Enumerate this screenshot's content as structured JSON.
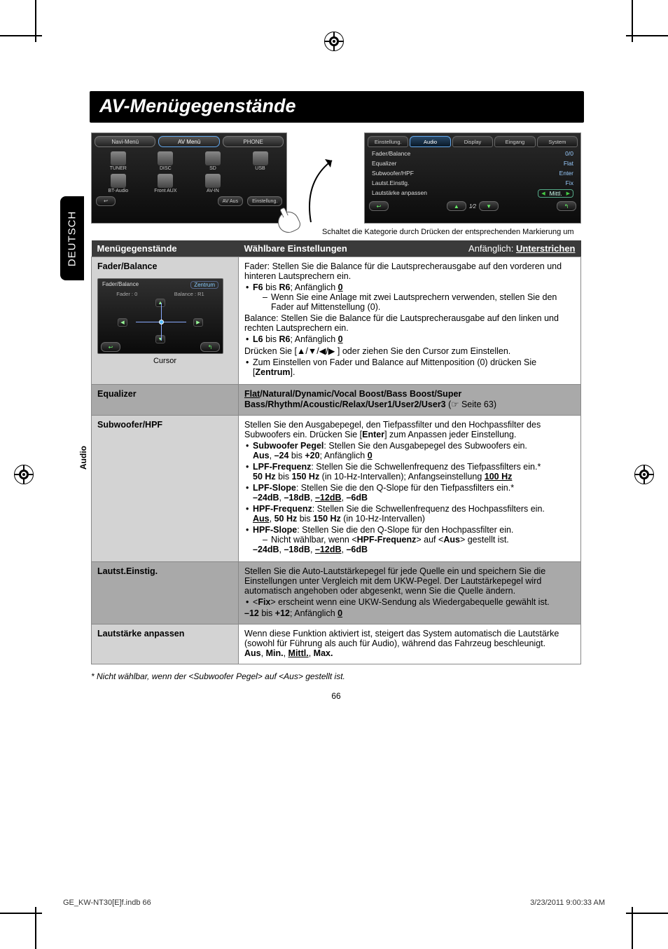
{
  "page": {
    "title": "AV-Menügegenstände",
    "language_tab": "DEUTSCH",
    "side_label": "Audio",
    "page_number": "66",
    "footnote": "*  Nicht wählbar, wenn der <Subwoofer Pegel> auf <Aus> gestellt ist.",
    "footer_left": "GE_KW-NT30[E]f.indb   66",
    "footer_right": "3/23/2011   9:00:33 AM"
  },
  "screenshot_left": {
    "tabs": [
      "Navi-Menü",
      "AV Menü",
      "PHONE"
    ],
    "icons": [
      "TUNER",
      "DISC",
      "SD",
      "USB",
      "BT-Audio",
      "Front AUX",
      "AV-IN",
      ""
    ],
    "bottom": [
      "↩",
      "AV Aus",
      "Einstellung."
    ]
  },
  "screenshot_right": {
    "tabs": [
      "Einstellung.",
      "Audio",
      "Display",
      "Eingang",
      "System"
    ],
    "rows": [
      {
        "label": "Fader/Balance",
        "value": "0/0"
      },
      {
        "label": "Equalizer",
        "value": "Flat"
      },
      {
        "label": "Subwoofer/HPF",
        "value": "Enter"
      },
      {
        "label": "Lautst.Einstlg.",
        "value": "Fix"
      },
      {
        "label": "Lautstärke anpassen",
        "value": "Mittl.",
        "arrows": true
      }
    ],
    "page_indicator": "1⁄2",
    "caption": "Schaltet die Kategorie durch Drücken der entsprechenden Markierung um"
  },
  "table": {
    "header_left": "Menügegenstände",
    "header_mid": "Wählbare Einstellungen",
    "header_right_prefix": "Anfänglich: ",
    "header_right_under": "Unterstrichen",
    "rows": [
      {
        "label": "Fader/Balance",
        "widget": {
          "title": "Fader/Balance",
          "zentrum": "Zentrum",
          "fader": "Fader  : 0",
          "balance": "Balance  : R1",
          "cursor": "Cursor"
        },
        "body_html": "Fader: Stellen Sie die Balance für die Lautsprecherausgabe auf den vorderen und hinteren Lautsprechern ein.<ul class='bul'><li><span class='b'>F6</span> bis <span class='b'>R6</span>; Anfänglich <span class='u'>0</span><ul class='sub'><li>Wenn Sie eine Anlage mit zwei Lautsprechern verwenden, stellen Sie den Fader auf Mittenstellung (0).</li></ul></li></ul>Balance: Stellen Sie die Balance für die Lautsprecherausgabe auf den linken und rechten Lautsprechern ein.<ul class='bul'><li><span class='b'>L6</span> bis <span class='b'>R6</span>; Anfänglich <span class='u'>0</span></li></ul>Drücken Sie [<span class='arrows'>▲/▼/◀/▶</span> ] oder ziehen Sie den Cursor zum Einstellen.<ul class='bul'><li>Zum Einstellen von Fader und Balance auf Mittenposition (0) drücken Sie [<span class='b'>Zentrum</span>].</li></ul>"
      },
      {
        "label": "Equalizer",
        "dark": true,
        "body_html": "<span class='u'>Flat</span><span class='b'>/Natural/Dynamic/Vocal Boost/Bass Boost/Super Bass/Rhythm/Acoustic/Relax/User1/User2/User3</span> (☞ Seite 63)"
      },
      {
        "label": "Subwoofer/HPF",
        "body_html": "Stellen Sie den Ausgabepegel, den Tiefpassfilter und den Hochpassfilter des Subwoofers ein. Drücken Sie [<span class='b'>Enter</span>] zum Anpassen jeder Einstellung.<ul class='bul'><li><span class='b'>Subwoofer Pegel</span>: Stellen Sie den Ausgabepegel des Subwoofers ein.<br><span class='b'>Aus</span>, <span class='b'>–24</span> bis <span class='b'>+20</span>; Anfänglich <span class='u'>0</span></li><li><span class='b'>LPF-Frequenz</span>: Stellen Sie die Schwellenfrequenz des Tiefpassfilters ein.*<br><span class='b'>50 Hz</span> bis <span class='b'>150 Hz</span> (in 10-Hz-Intervallen); Anfangseinstellung <span class='u'>100 Hz</span></li><li><span class='b'>LPF-Slope</span>: Stellen Sie die den Q-Slope für den Tiefpassfilters ein.*<br><span class='b'>–24dB</span>, <span class='b'>–18dB</span>, <span class='u'>–12dB</span>, <span class='b'>–6dB</span></li><li><span class='b'>HPF-Frequenz</span>: Stellen Sie die Schwellenfrequenz des Hochpassfilters ein.<br><span class='u'>Aus</span>, <span class='b'>50 Hz</span> bis <span class='b'>150 Hz</span> (in 10-Hz-Intervallen)</li><li><span class='b'>HPF-Slope</span>: Stellen Sie die den Q-Slope für den Hochpassfilter ein.<ul class='sub'><li>Nicht wählbar, wenn &lt;<span class='b'>HPF-Frequenz</span>&gt; auf &lt;<span class='b'>Aus</span>&gt; gestellt ist.</li></ul><span class='b'>–24dB</span>, <span class='b'>–18dB</span>, <span class='u'>–12dB</span>, <span class='b'>–6dB</span></li></ul>"
      },
      {
        "label": "Lautst.Einstig.",
        "dark": true,
        "body_html": "Stellen Sie die Auto-Lautstärkepegel für jede Quelle ein und speichern Sie die Einstellungen unter Vergleich mit dem UKW-Pegel. Der Lautstärkepegel wird automatisch angehoben oder abgesenkt, wenn Sie die Quelle ändern.<ul class='bul'><li>&lt;<span class='b'>Fix</span>&gt; erscheint wenn eine UKW-Sendung als Wiedergabequelle gewählt ist.</li></ul><span class='b'>–12</span> bis <span class='b'>+12</span>; Anfänglich <span class='u'>0</span>"
      },
      {
        "label": "Lautstärke anpassen",
        "body_html": "Wenn diese Funktion aktiviert ist, steigert das System automatisch die Lautstärke (sowohl für Führung als auch für Audio), während das Fahrzeug beschleunigt.<br><span class='b'>Aus</span>, <span class='b'>Min.</span>, <span class='u'>Mittl.</span>, <span class='b'>Max.</span>"
      }
    ]
  }
}
